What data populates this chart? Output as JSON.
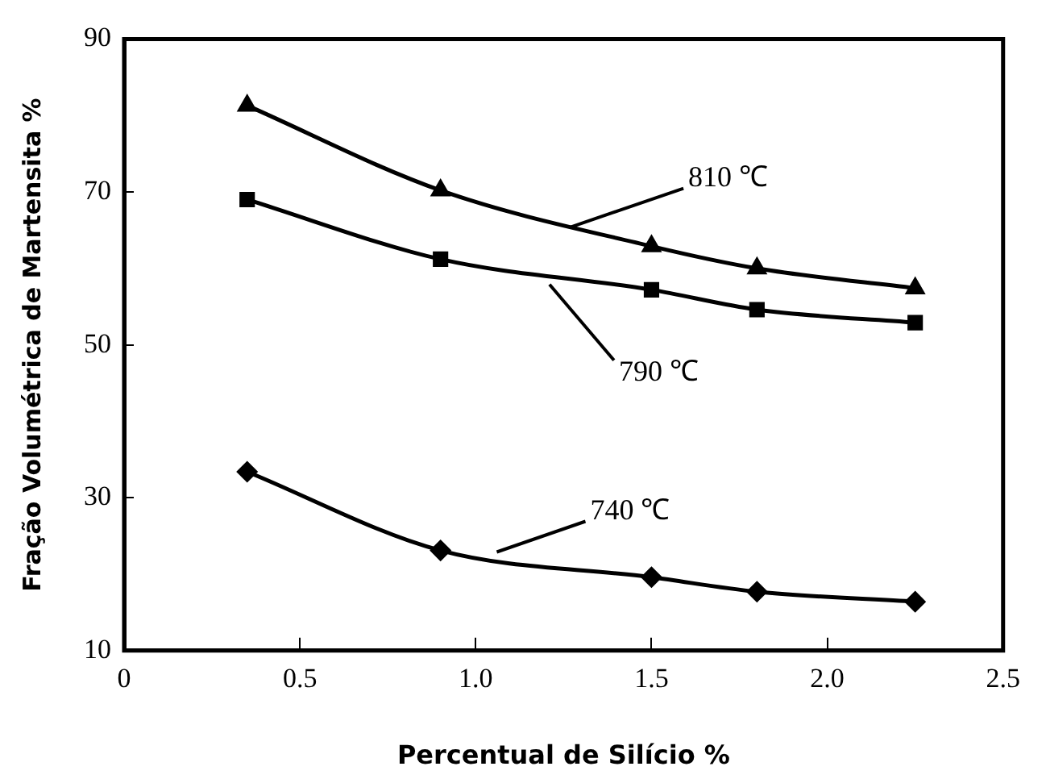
{
  "chart_data": {
    "type": "line",
    "xlabel": "Percentual de Silício %",
    "ylabel": "Fração Volumétrica de Martensita %",
    "x": [
      0.35,
      0.9,
      1.5,
      1.8,
      2.25
    ],
    "series": [
      {
        "color": "#000000",
        "marker": "triangle",
        "values": [
          81.3,
          70.2,
          62.9,
          60.0,
          57.4
        ]
      },
      {
        "color": "#000000",
        "marker": "square",
        "values": [
          69.0,
          61.2,
          57.2,
          54.6,
          52.9
        ]
      },
      {
        "color": "#000000",
        "marker": "diamond",
        "values": [
          33.4,
          23.1,
          19.6,
          17.7,
          16.4
        ]
      }
    ],
    "annotations": [
      {
        "text": "810 ℃",
        "x": 1.27,
        "y": 65.4
      },
      {
        "text": "790 ℃",
        "x": 1.21,
        "y": 57.9
      },
      {
        "text": "740 ℃",
        "x": 1.06,
        "y": 22.9
      }
    ],
    "xlim": [
      0,
      2.5
    ],
    "xticks": [
      0,
      {
        "value": 0.5,
        "label": "0.5"
      },
      {
        "value": 1.0,
        "label": "1.0"
      },
      {
        "value": 1.5,
        "label": "1.5"
      },
      {
        "value": 2.0,
        "label": "2.0"
      },
      {
        "value": 2.5,
        "label": "2.5"
      }
    ],
    "ylim": [
      10,
      90
    ],
    "yticks": [
      10,
      30,
      50,
      70,
      90
    ],
    "grid": false,
    "legend": false,
    "line_style": "solid"
  }
}
